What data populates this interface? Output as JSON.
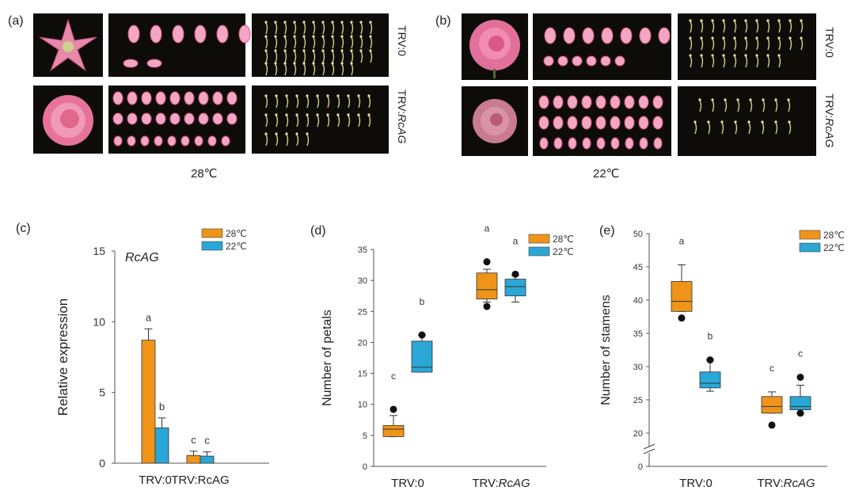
{
  "panels": {
    "a": {
      "label": "(a)",
      "temperature": "28℃"
    },
    "b": {
      "label": "(b)",
      "temperature": "22℃"
    },
    "c": {
      "label": "(c)"
    },
    "d": {
      "label": "(d)"
    },
    "e": {
      "label": "(e)"
    }
  },
  "row_labels": {
    "trv0": "TRV:0",
    "trv_prefix": "TRV:",
    "trv_gene": "RcAG"
  },
  "colors": {
    "c28": "#ef9418",
    "c22": "#2aa7d6",
    "photo_bg": "#0d0c09",
    "petal": "#f3a6c3",
    "petal_edge": "#d9577f",
    "stamen": "#d8cf86",
    "flower": "#e56b96"
  },
  "chart_data": [
    {
      "id": "c",
      "type": "bar",
      "title": "RcAG",
      "ylabel": "Relative expression",
      "xlabel": "",
      "ylim": [
        0,
        15
      ],
      "yticks": [
        "0",
        "5",
        "10",
        "15"
      ],
      "categories": [
        "TRV:0",
        "TRV:RcAG"
      ],
      "legend": [
        "28℃",
        "22℃"
      ],
      "series": [
        {
          "name": "28℃",
          "values": [
            8.7,
            0.55
          ],
          "errors": [
            0.8,
            0.3
          ],
          "letters": [
            "a",
            "c"
          ]
        },
        {
          "name": "22℃",
          "values": [
            2.5,
            0.5
          ],
          "errors": [
            0.7,
            0.3
          ],
          "letters": [
            "b",
            "c"
          ]
        }
      ]
    },
    {
      "id": "d",
      "type": "box",
      "ylabel": "Number of petals",
      "ylim": [
        0,
        35
      ],
      "yticks": [
        "0",
        "5",
        "10",
        "15",
        "20",
        "25",
        "30",
        "35"
      ],
      "categories": [
        "TRV:0",
        "TRV:RcAG"
      ],
      "legend": [
        "28℃",
        "22℃"
      ],
      "series": [
        {
          "name": "28℃",
          "boxes": [
            {
              "min": 4.8,
              "q1": 4.8,
              "median": 6.0,
              "q3": 6.6,
              "max": 8.2,
              "outliers": [
                9.2
              ],
              "letter": "c"
            },
            {
              "min": 26.5,
              "q1": 27.0,
              "median": 28.5,
              "q3": 31.2,
              "max": 31.8,
              "outliers": [
                25.8,
                33.0
              ],
              "letter": "a"
            }
          ]
        },
        {
          "name": "22℃",
          "boxes": [
            {
              "min": 15.2,
              "q1": 15.2,
              "median": 16.0,
              "q3": 20.2,
              "max": 21.2,
              "outliers": [
                21.2
              ],
              "letter": "b"
            },
            {
              "min": 26.5,
              "q1": 27.5,
              "median": 29.0,
              "q3": 30.2,
              "max": 30.8,
              "outliers": [
                31.0
              ],
              "letter": "a"
            }
          ]
        }
      ]
    },
    {
      "id": "e",
      "type": "box",
      "ylabel": "Number of stamens",
      "ylim": [
        20,
        50
      ],
      "axis_break": true,
      "yticks": [
        "0",
        "20",
        "25",
        "30",
        "35",
        "40",
        "45",
        "50"
      ],
      "categories": [
        "TRV:0",
        "TRV:RcAG"
      ],
      "legend": [
        "28℃",
        "22℃"
      ],
      "series": [
        {
          "name": "28℃",
          "boxes": [
            {
              "min": 38.3,
              "q1": 38.3,
              "median": 39.8,
              "q3": 42.8,
              "max": 45.3,
              "outliers": [
                37.3
              ],
              "letter": "a"
            },
            {
              "min": 23.0,
              "q1": 23.0,
              "median": 24.0,
              "q3": 25.5,
              "max": 26.2,
              "outliers": [
                21.2
              ],
              "letter": "c"
            }
          ]
        },
        {
          "name": "22℃",
          "boxes": [
            {
              "min": 26.3,
              "q1": 26.8,
              "median": 27.5,
              "q3": 29.2,
              "max": 31.0,
              "outliers": [
                31.0
              ],
              "letter": "b"
            },
            {
              "min": 23.0,
              "q1": 23.5,
              "median": 24.0,
              "q3": 25.5,
              "max": 27.2,
              "outliers": [
                23.0,
                28.4
              ],
              "letter": "c"
            }
          ]
        }
      ]
    }
  ]
}
